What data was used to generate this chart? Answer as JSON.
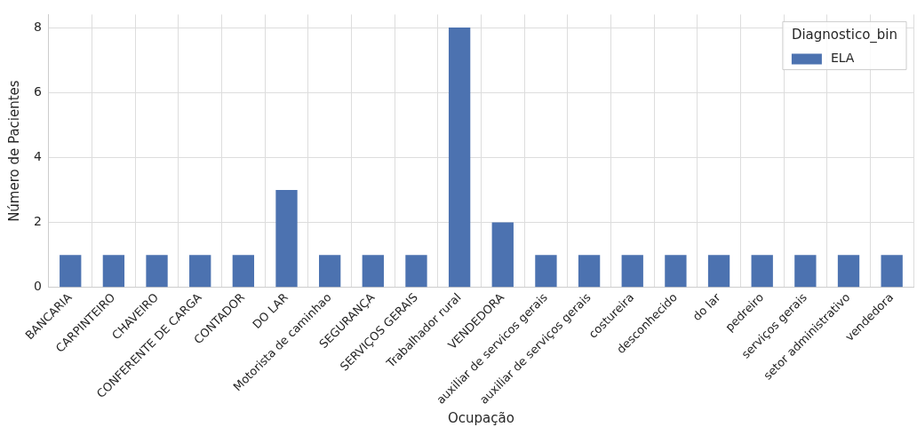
{
  "chart_data": {
    "type": "bar",
    "xlabel": "Ocupação",
    "ylabel": "Número de Pacientes",
    "legend_title": "Diagnostico_bin",
    "categories": [
      "BANCARIA",
      "CARPINTEIRO",
      "CHAVEIRO",
      "CONFERENTE DE CARGA",
      "CONTADOR",
      "DO LAR",
      "Motorista de caminhao",
      "SEGURANÇA",
      "SERVIÇOS GERAIS",
      "Trabalhador rural",
      "VENDEDORA",
      "auxiliar de servicos gerais",
      "auxiliar de serviços gerais",
      "costureira",
      "desconhecido",
      "do lar",
      "pedreiro",
      "serviços gerais",
      "setor administrativo",
      "vendedora"
    ],
    "series": [
      {
        "name": "ELA",
        "color": "#4c72b0",
        "values": [
          1,
          1,
          1,
          1,
          1,
          3,
          1,
          1,
          1,
          8,
          2,
          1,
          1,
          1,
          1,
          1,
          1,
          1,
          1,
          1
        ]
      }
    ],
    "ylim": [
      0,
      8.4
    ],
    "yticks": [
      0,
      2,
      4,
      6,
      8
    ],
    "grid": true,
    "legend": "top right"
  }
}
